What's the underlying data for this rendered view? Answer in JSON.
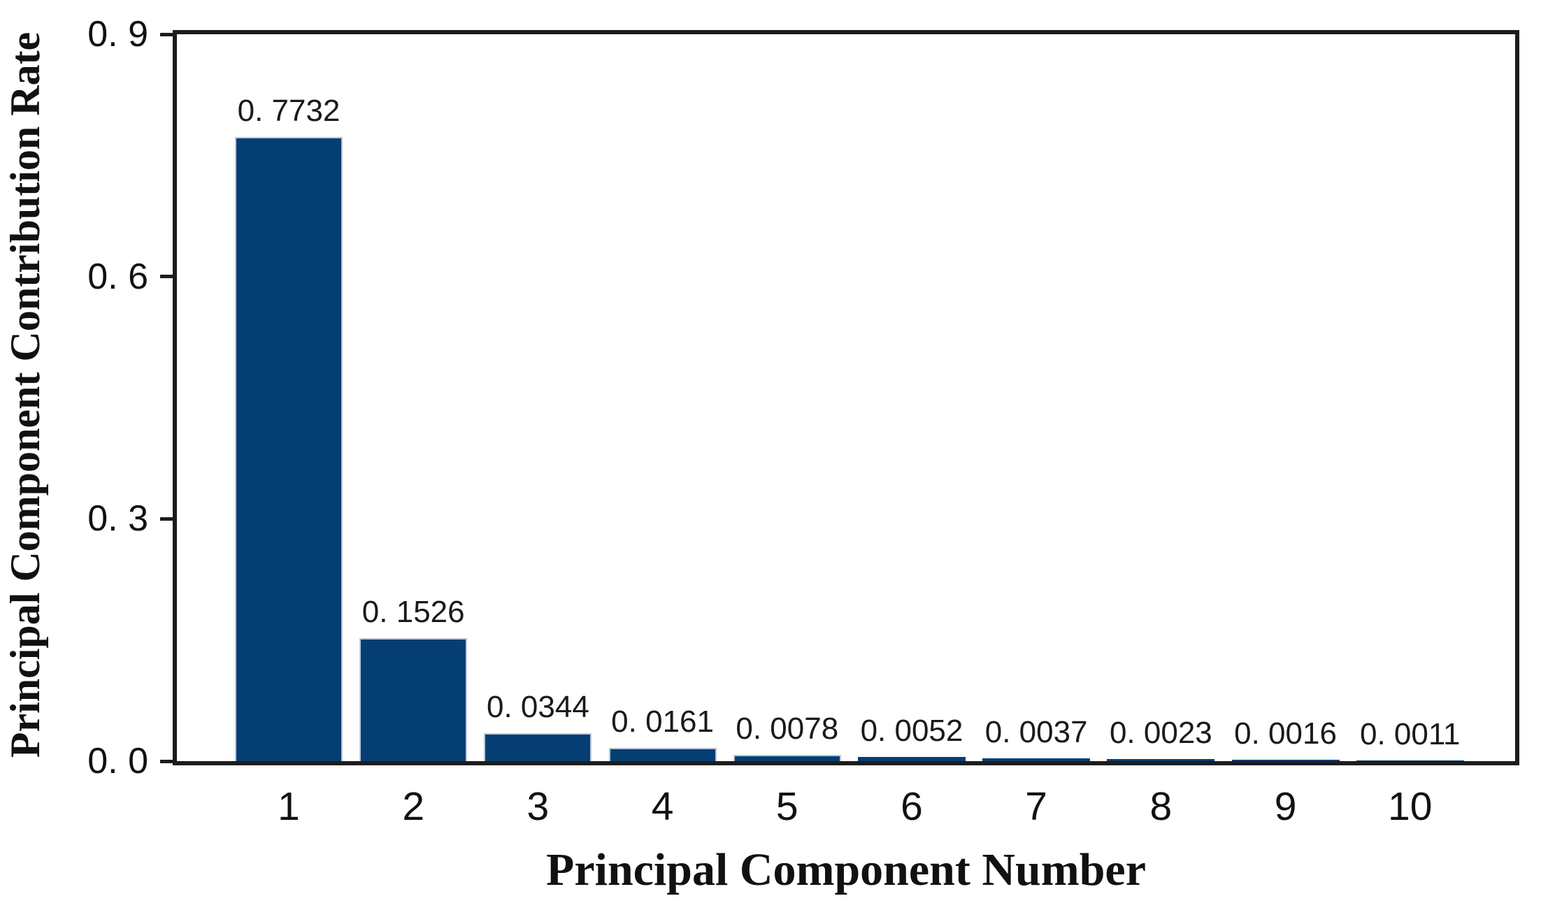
{
  "chart_data": {
    "type": "bar",
    "title": "",
    "xlabel": "Principal Component Number",
    "ylabel": "Principal Component Contribution Rate",
    "categories": [
      "1",
      "2",
      "3",
      "4",
      "5",
      "6",
      "7",
      "8",
      "9",
      "10"
    ],
    "values": [
      0.7732,
      0.1526,
      0.0344,
      0.0161,
      0.0078,
      0.0052,
      0.0037,
      0.0023,
      0.0016,
      0.0011
    ],
    "value_labels": [
      "0. 7732",
      "0. 1526",
      "0. 0344",
      "0. 0161",
      "0. 0078",
      "0. 0052",
      "0. 0037",
      "0. 0023",
      "0. 0016",
      "0. 0011"
    ],
    "y_ticks": [
      {
        "value": 0.0,
        "label": "0. 0"
      },
      {
        "value": 0.3,
        "label": "0. 3"
      },
      {
        "value": 0.6,
        "label": "0. 6"
      },
      {
        "value": 0.9,
        "label": "0. 9"
      }
    ],
    "ylim": [
      0,
      0.9
    ],
    "grid": false,
    "legend_position": "none",
    "bar_color": "#053e72",
    "bar_edge_color": "#b9c7d9",
    "axis_color": "#1c1c1c",
    "text_color": "#111111",
    "background_color": "#ffffff"
  }
}
